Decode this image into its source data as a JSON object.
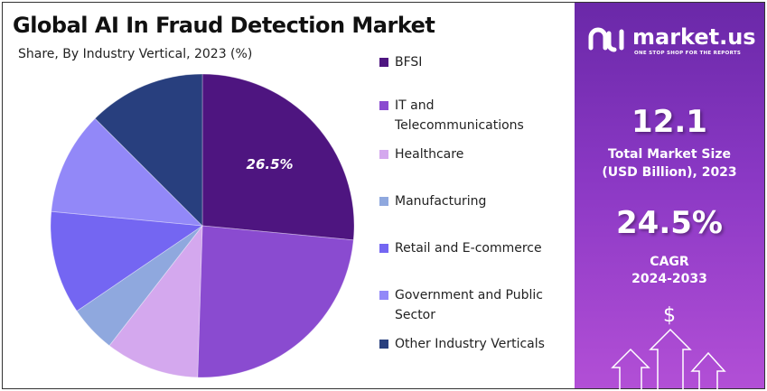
{
  "chart_data": {
    "type": "pie",
    "title": "Global AI In Fraud Detection Market",
    "subtitle": "Share, By Industry Vertical, 2023 (%)",
    "legend_position": "right",
    "slices": [
      {
        "label": "BFSI",
        "value": 26.5,
        "color": "#4e1580",
        "data_label": "26.5%"
      },
      {
        "label": "IT and Telecommunications",
        "value": 24,
        "color": "#8a4bd0"
      },
      {
        "label": "Healthcare",
        "value": 10,
        "color": "#d4a8ee"
      },
      {
        "label": "Manufacturing",
        "value": 5,
        "color": "#8fa8de"
      },
      {
        "label": "Retail and E-commerce",
        "value": 11,
        "color": "#7466f2"
      },
      {
        "label": "Government and Public Sector",
        "value": 11,
        "color": "#9288f8"
      },
      {
        "label": "Other Industry Verticals",
        "value": 12.5,
        "color": "#283f7e"
      }
    ]
  },
  "legend": [
    {
      "lines": [
        "BFSI"
      ]
    },
    {
      "lines": [
        "IT and",
        "Telecommunications"
      ]
    },
    {
      "lines": [
        "Healthcare"
      ]
    },
    {
      "lines": [
        "Manufacturing"
      ]
    },
    {
      "lines": [
        "Retail and E-commerce"
      ]
    },
    {
      "lines": [
        "Government and Public",
        "Sector"
      ]
    },
    {
      "lines": [
        "Other Industry Verticals"
      ]
    }
  ],
  "panel": {
    "logo_name": "market.us",
    "logo_tagline": "ONE STOP SHOP FOR THE REPORTS",
    "market_size": "12.1",
    "market_size_label1": "Total Market Size",
    "market_size_label2": "(USD Billion), 2023",
    "cagr": "24.5%",
    "cagr_label1": "CAGR",
    "cagr_label2": "2024-2033",
    "dollar": "$"
  }
}
